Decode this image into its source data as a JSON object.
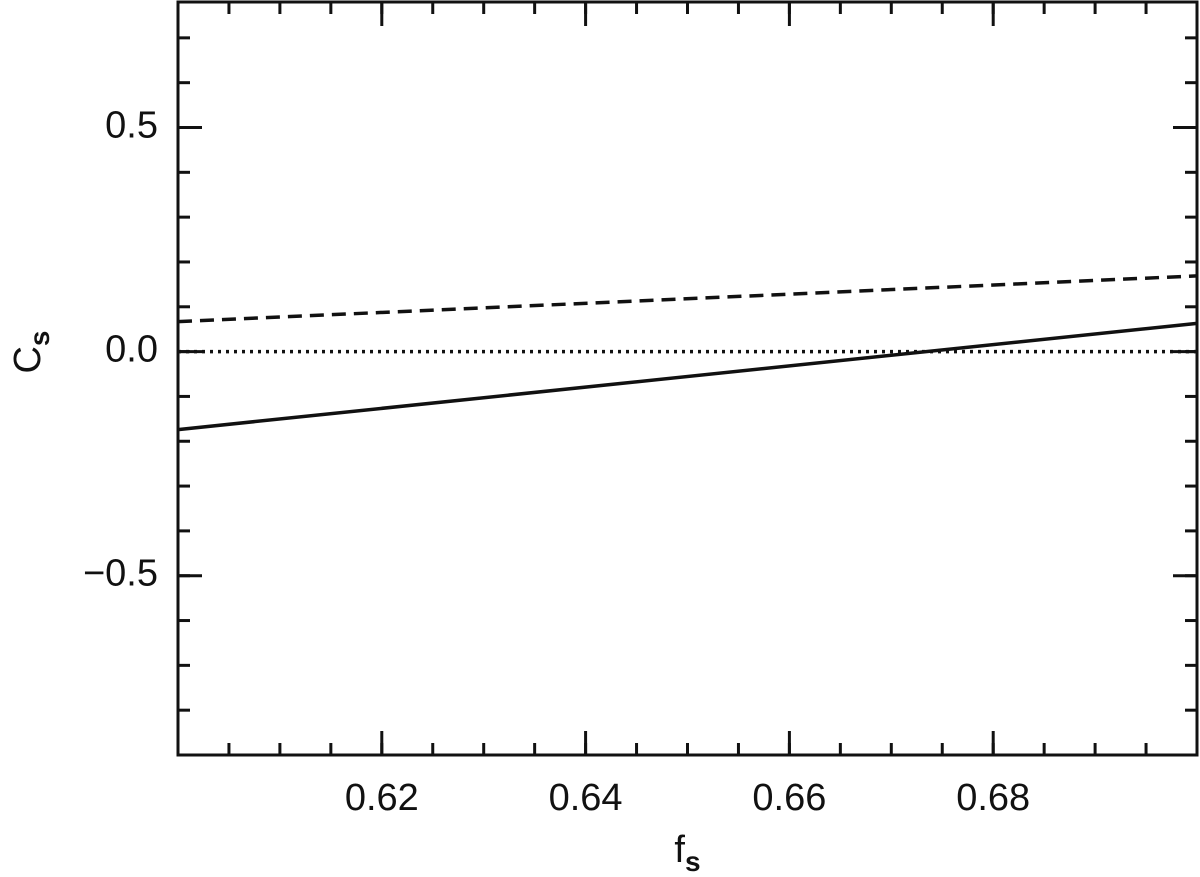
{
  "chart_data": {
    "type": "line",
    "xlabel": "f",
    "xlabel_subscript": "s",
    "ylabel": "C",
    "ylabel_subscript": "s",
    "xlim": [
      0.6,
      0.7
    ],
    "ylim": [
      -0.9,
      0.78
    ],
    "xticks": [
      0.62,
      0.64,
      0.66,
      0.68
    ],
    "yticks": [
      {
        "value": -0.5,
        "label": "−0.5"
      },
      {
        "value": 0,
        "label": "0.0"
      },
      {
        "value": 0.5,
        "label": "0.5"
      }
    ],
    "x_minor_step": 0.005,
    "y_minor_step": 0.1,
    "series": [
      {
        "color": "#111111",
        "style": "solid",
        "x": [
          0.6,
          0.7
        ],
        "values": [
          -0.174,
          0.063
        ]
      },
      {
        "color": "#111111",
        "style": "dashed",
        "x": [
          0.6,
          0.7
        ],
        "values": [
          0.067,
          0.169
        ]
      },
      {
        "color": "#111111",
        "style": "dotted",
        "x": [
          0.6,
          0.7
        ],
        "values": [
          0,
          0
        ]
      }
    ]
  }
}
